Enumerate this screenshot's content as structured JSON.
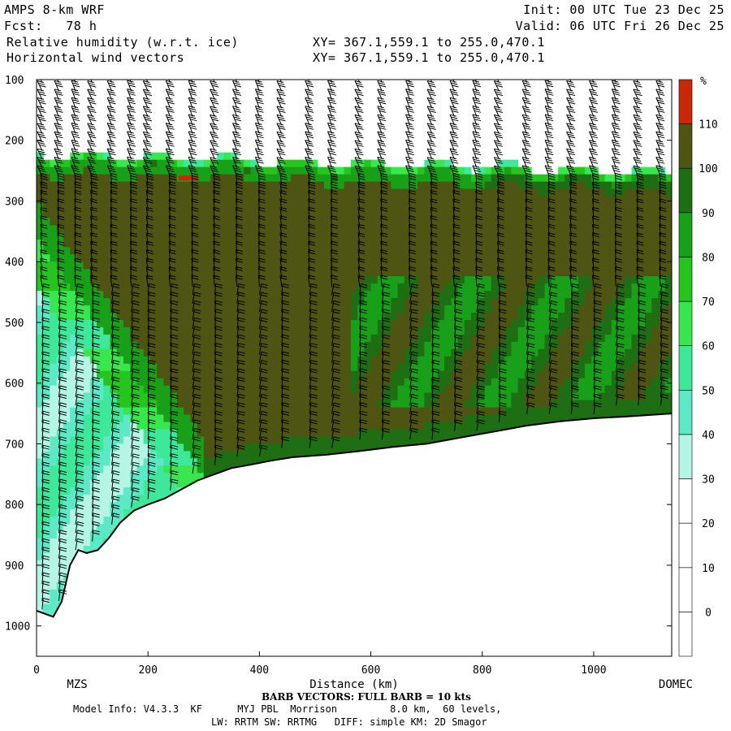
{
  "header": {
    "model": "AMPS 8-km WRF",
    "fcst": "Fcst:   78 h",
    "field1": "Relative humidity (w.r.t. ice)",
    "field2": "Horizontal wind vectors",
    "init": "Init: 00 UTC Tue 23 Dec 25",
    "valid": "Valid: 06 UTC Fri 26 Dec 25",
    "xy1": "XY= 367.1,559.1 to 255.0,470.1",
    "xy2": "XY= 367.1,559.1 to 255.0,470.1"
  },
  "chart_data": {
    "type": "heatmap",
    "title": "Relative humidity (w.r.t. ice)",
    "xlabel": "Distance (km)",
    "ylabel": "",
    "xlim": [
      0,
      1140
    ],
    "ylim_pressure": [
      1050,
      100
    ],
    "x_ticks": [
      0,
      200,
      400,
      600,
      800,
      1000
    ],
    "y_ticks": [
      100,
      200,
      300,
      400,
      500,
      600,
      700,
      800,
      900,
      1000
    ],
    "endpoint_labels": {
      "left": "MZS",
      "right": "DOMEC"
    },
    "colorbar": {
      "unit": "%",
      "levels": [
        0,
        10,
        20,
        30,
        40,
        50,
        60,
        70,
        80,
        90,
        100,
        110
      ],
      "colors": [
        "#ffffff",
        "#ffffff",
        "#ffffff",
        "#ffffff",
        "#b4f5e4",
        "#5de8c6",
        "#3ee89a",
        "#38e64e",
        "#26c41e",
        "#18a018",
        "#1e6e14",
        "#4e5412",
        "#c82808"
      ]
    },
    "terrain_profile": {
      "x": [
        0,
        15,
        30,
        45,
        60,
        75,
        90,
        110,
        130,
        150,
        175,
        200,
        230,
        260,
        290,
        320,
        350,
        380,
        420,
        460,
        520,
        580,
        640,
        700,
        760,
        820,
        880,
        940,
        1000,
        1060,
        1140
      ],
      "p": [
        975,
        980,
        985,
        960,
        900,
        875,
        880,
        875,
        855,
        830,
        810,
        800,
        790,
        775,
        760,
        750,
        740,
        735,
        728,
        722,
        718,
        712,
        705,
        700,
        690,
        680,
        670,
        663,
        658,
        655,
        650
      ]
    },
    "barb_columns_x": [
      10,
      40,
      70,
      100,
      135,
      170,
      200,
      240,
      280,
      320,
      360,
      400,
      440,
      490,
      530,
      580,
      620,
      670,
      710,
      750,
      790,
      830,
      880,
      920,
      960,
      1000,
      1040,
      1080,
      1120
    ]
  },
  "footer": {
    "barb_note": "BARB VECTORS: FULL BARB = 10 kts",
    "model_info": "Model Info: V4.3.3  KF      MYJ PBL  Morrison         8.0 km,  60 levels,",
    "physics": "LW: RRTM SW: RRTMG   DIFF: simple KM: 2D Smagor"
  }
}
